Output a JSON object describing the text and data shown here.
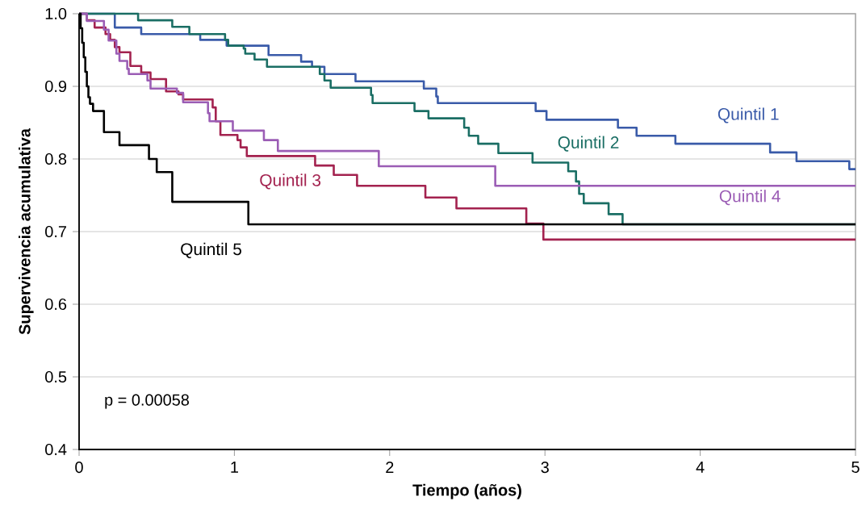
{
  "chart_data": {
    "type": "step",
    "xlabel": "Tiempo (años)",
    "ylabel": "Supervivencia acumulativa",
    "xlim": [
      0,
      5
    ],
    "ylim": [
      0.4,
      1.0
    ],
    "xticks": [
      0,
      1,
      2,
      3,
      4,
      5
    ],
    "yticks": [
      0.4,
      0.5,
      0.6,
      0.7,
      0.8,
      0.9,
      {
        "value": 1,
        "label": "1.0"
      }
    ],
    "grid": "y",
    "line_style": "solid",
    "annotations": [
      "p = 0.00058"
    ],
    "series": [
      {
        "name": "Quintil 1",
        "color": "#3a5ba9",
        "x": [
          0,
          0.23,
          0.4,
          0.78,
          0.95,
          1.22,
          1.43,
          1.5,
          1.58,
          1.78,
          2.22,
          2.3,
          2.31,
          2.94,
          3.01,
          3.47,
          3.59,
          3.84,
          4.45,
          4.62,
          4.96,
          5
        ],
        "values": [
          1.0,
          0.981,
          0.972,
          0.964,
          0.956,
          0.943,
          0.934,
          0.927,
          0.917,
          0.907,
          0.897,
          0.886,
          0.877,
          0.866,
          0.854,
          0.843,
          0.832,
          0.821,
          0.809,
          0.797,
          0.786,
          0.786
        ]
      },
      {
        "name": "Quintil 2",
        "color": "#1a6e64",
        "x": [
          0,
          0.38,
          0.6,
          0.71,
          0.94,
          0.96,
          1.06,
          1.07,
          1.13,
          1.21,
          1.55,
          1.58,
          1.62,
          1.88,
          1.89,
          2.16,
          2.25,
          2.48,
          2.51,
          2.57,
          2.7,
          2.92,
          3.15,
          3.2,
          3.22,
          3.25,
          3.41,
          3.5,
          5
        ],
        "values": [
          1.0,
          0.991,
          0.982,
          0.972,
          0.964,
          0.956,
          0.952,
          0.945,
          0.937,
          0.927,
          0.917,
          0.908,
          0.898,
          0.888,
          0.877,
          0.866,
          0.856,
          0.843,
          0.832,
          0.821,
          0.808,
          0.795,
          0.783,
          0.769,
          0.752,
          0.739,
          0.724,
          0.71,
          0.71
        ]
      },
      {
        "name": "Quintil 3",
        "color": "#a3224f",
        "x": [
          0,
          0.05,
          0.1,
          0.17,
          0.2,
          0.23,
          0.26,
          0.33,
          0.4,
          0.46,
          0.56,
          0.64,
          0.67,
          0.86,
          0.88,
          0.91,
          1.02,
          1.04,
          1.08,
          1.52,
          1.64,
          1.79,
          2.23,
          2.43,
          2.88,
          2.99,
          5
        ],
        "values": [
          1.0,
          0.991,
          0.981,
          0.972,
          0.964,
          0.954,
          0.947,
          0.928,
          0.919,
          0.91,
          0.893,
          0.889,
          0.882,
          0.871,
          0.852,
          0.833,
          0.826,
          0.816,
          0.804,
          0.791,
          0.778,
          0.763,
          0.747,
          0.732,
          0.711,
          0.689,
          0.689
        ]
      },
      {
        "name": "Quintil 4",
        "color": "#9b5db5",
        "x": [
          0,
          0.05,
          0.16,
          0.19,
          0.24,
          0.26,
          0.31,
          0.32,
          0.44,
          0.46,
          0.63,
          0.67,
          0.83,
          0.84,
          0.99,
          1.19,
          1.28,
          1.93,
          2.68,
          5
        ],
        "values": [
          1.0,
          0.99,
          0.978,
          0.963,
          0.945,
          0.935,
          0.924,
          0.917,
          0.908,
          0.897,
          0.891,
          0.878,
          0.863,
          0.852,
          0.839,
          0.826,
          0.811,
          0.79,
          0.763,
          0.763
        ]
      },
      {
        "name": "Quintil 5",
        "color": "#000000",
        "x": [
          0,
          0.01,
          0.02,
          0.03,
          0.04,
          0.05,
          0.06,
          0.07,
          0.09,
          0.16,
          0.26,
          0.45,
          0.5,
          0.6,
          1.09,
          5
        ],
        "values": [
          1.0,
          0.98,
          0.96,
          0.94,
          0.92,
          0.9,
          0.885,
          0.876,
          0.866,
          0.837,
          0.819,
          0.8,
          0.782,
          0.741,
          0.71,
          0.71
        ]
      }
    ]
  }
}
